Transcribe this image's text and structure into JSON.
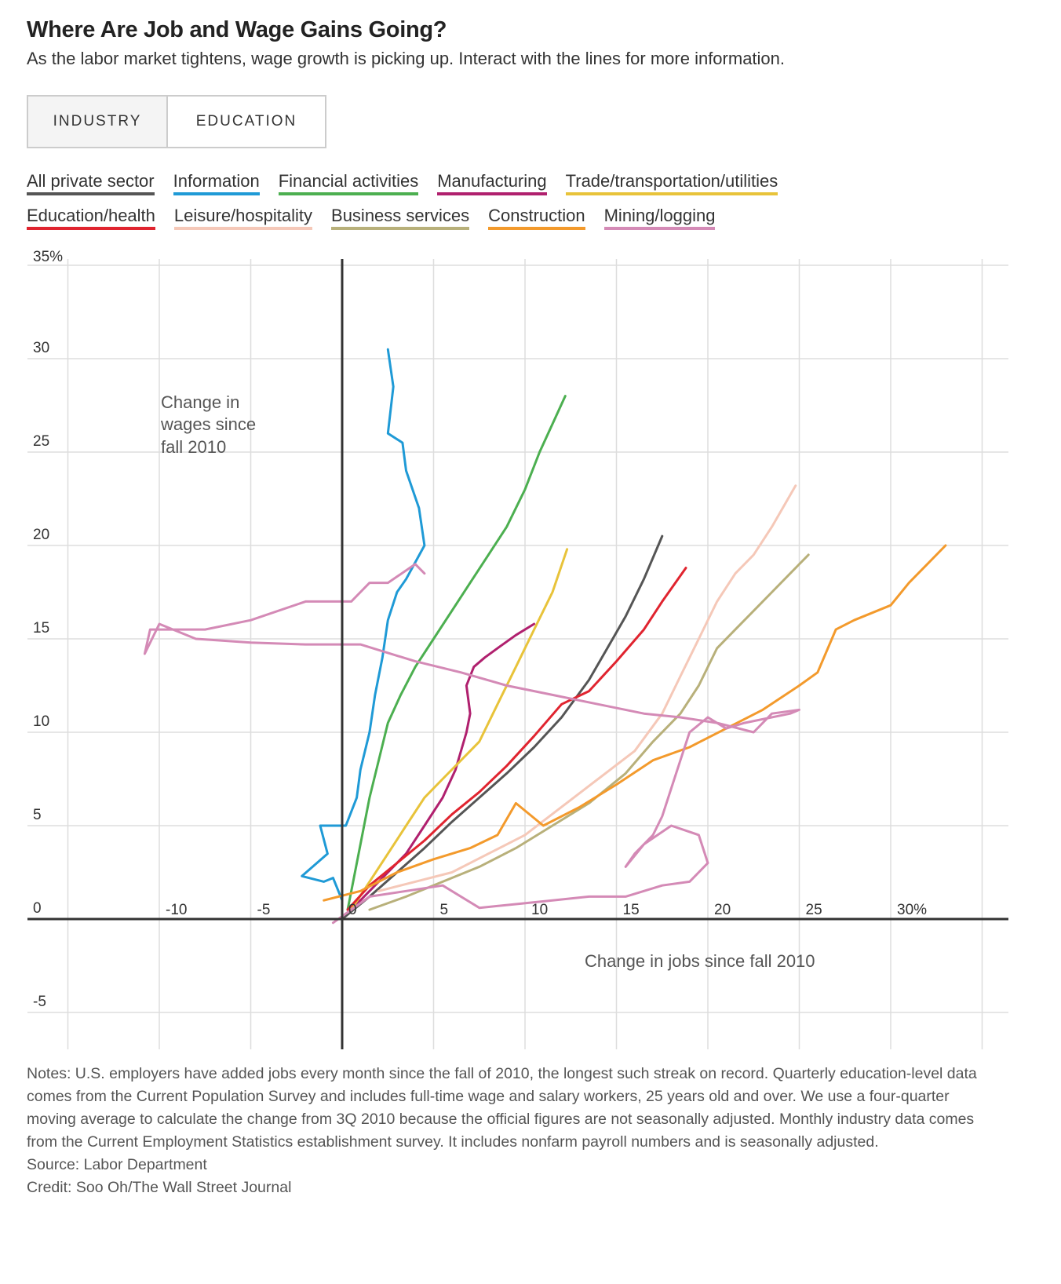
{
  "header": {
    "title": "Where Are Job and Wage Gains Going?",
    "subtitle": "As the labor market tightens, wage growth is picking up. Interact with the lines for more information."
  },
  "toggle": {
    "industry_label": "INDUSTRY",
    "education_label": "EDUCATION"
  },
  "legend": {
    "row1": [
      {
        "label": "All private sector",
        "color": "#555555"
      },
      {
        "label": "Information",
        "color": "#1f9ad6"
      },
      {
        "label": "Financial activities",
        "color": "#4caf50"
      },
      {
        "label": "Manufacturing",
        "color": "#b0206e"
      },
      {
        "label": "Trade/transportation/utilities",
        "color": "#e8c33a"
      }
    ],
    "row2": [
      {
        "label": "Education/health",
        "color": "#e0242f"
      },
      {
        "label": "Leisure/hospitality",
        "color": "#f5c8b8"
      },
      {
        "label": "Business services",
        "color": "#b8b07a"
      },
      {
        "label": "Construction",
        "color": "#f39a2c"
      },
      {
        "label": "Mining/logging",
        "color": "#d48ab6"
      }
    ]
  },
  "chart_data": {
    "type": "line",
    "title": "Where Are Job and Wage Gains Going?",
    "xlabel": "Change in jobs since fall 2010",
    "ylabel": "Change in wages since fall 2010",
    "xlim": [
      -15,
      36
    ],
    "ylim": [
      -7,
      36.5
    ],
    "x_ticks": [
      -10,
      -5,
      0,
      5,
      10,
      15,
      20,
      25,
      30
    ],
    "x_tick_labels": [
      "-10",
      "-5",
      "0",
      "5",
      "10",
      "15",
      "20",
      "25",
      "30%"
    ],
    "y_ticks": [
      -5,
      0,
      5,
      10,
      15,
      20,
      25,
      30,
      35
    ],
    "y_tick_labels": [
      "-5",
      "0",
      "5",
      "10",
      "15",
      "20",
      "25",
      "30",
      "35%"
    ],
    "grid": true,
    "series": [
      {
        "name": "All private sector",
        "color": "#555555",
        "x": [
          0,
          1.5,
          3,
          4.5,
          6,
          7.5,
          9,
          10.5,
          12,
          13.5,
          14.5,
          15.5,
          16.5,
          17.5
        ],
        "y": [
          0,
          1.2,
          2.5,
          3.8,
          5.2,
          6.5,
          7.8,
          9.2,
          10.8,
          12.8,
          14.5,
          16.2,
          18.2,
          20.5
        ]
      },
      {
        "name": "Information",
        "color": "#1f9ad6",
        "x": [
          0,
          -0.5,
          -1,
          -2.2,
          -0.8,
          -1.2,
          0.2,
          0.8,
          1,
          1.5,
          1.8,
          2.2,
          2.5,
          3,
          3.5,
          4.5,
          4.2,
          3.5,
          3.3,
          2.5,
          2.8,
          2.5
        ],
        "y": [
          1,
          2.2,
          2,
          2.3,
          3.5,
          5,
          5,
          6.5,
          8,
          10,
          12,
          14,
          16,
          17.5,
          18.2,
          20,
          22,
          24,
          25.5,
          26,
          28.5,
          30.5
        ]
      },
      {
        "name": "Financial activities",
        "color": "#4caf50",
        "x": [
          0.3,
          0.6,
          1,
          1.5,
          2,
          2.5,
          3.2,
          4,
          5,
          6,
          7,
          8,
          9,
          10,
          10.8,
          11.5,
          12.2
        ],
        "y": [
          0.5,
          2,
          4,
          6.5,
          8.5,
          10.5,
          12,
          13.5,
          15,
          16.5,
          18,
          19.5,
          21,
          23,
          25,
          26.5,
          28
        ]
      },
      {
        "name": "Manufacturing",
        "color": "#b0206e",
        "x": [
          0.5,
          1.5,
          2.5,
          3.5,
          4.5,
          5.5,
          6.2,
          6.8,
          7,
          6.8,
          7.2,
          7.8,
          8.5,
          9.5,
          10.5
        ],
        "y": [
          0.5,
          1.5,
          2.5,
          3.5,
          5,
          6.5,
          8,
          10,
          11,
          12.5,
          13.5,
          14,
          14.5,
          15.2,
          15.8
        ]
      },
      {
        "name": "Trade/transportation/utilities",
        "color": "#e8c33a",
        "x": [
          0.5,
          1.5,
          2.5,
          3.5,
          4.5,
          5.5,
          6.5,
          7.5,
          8.5,
          9.5,
          10.5,
          11.5,
          12.3
        ],
        "y": [
          0.5,
          2,
          3.5,
          5,
          6.5,
          7.5,
          8.5,
          9.5,
          11.5,
          13.5,
          15.5,
          17.5,
          19.8
        ]
      },
      {
        "name": "Education/health",
        "color": "#e0242f",
        "x": [
          0.3,
          1.5,
          3,
          4.5,
          6,
          7.5,
          9,
          10.5,
          12,
          13.5,
          15,
          16.5,
          17.5,
          18.8
        ],
        "y": [
          0.5,
          1.8,
          3,
          4.2,
          5.6,
          6.8,
          8.2,
          9.8,
          11.5,
          12.2,
          13.8,
          15.5,
          17,
          18.8
        ]
      },
      {
        "name": "Leisure/hospitality",
        "color": "#f5c8b8",
        "x": [
          2,
          4,
          6,
          8,
          10,
          12,
          14,
          16,
          17.5,
          18.5,
          19.5,
          20.5,
          21.5,
          22.5,
          23.5,
          24.8
        ],
        "y": [
          1.5,
          2,
          2.5,
          3.5,
          4.5,
          6,
          7.5,
          9,
          11,
          13,
          15,
          17,
          18.5,
          19.5,
          21,
          23.2
        ]
      },
      {
        "name": "Business services",
        "color": "#b8b07a",
        "x": [
          1.5,
          3.5,
          5.5,
          7.5,
          9.5,
          11.5,
          13.5,
          15.5,
          17,
          18.5,
          19.5,
          20.5,
          21.5,
          22.5,
          23.5,
          24.5,
          25.5
        ],
        "y": [
          0.5,
          1.2,
          2,
          2.8,
          3.8,
          5,
          6.2,
          7.8,
          9.5,
          11,
          12.5,
          14.5,
          15.5,
          16.5,
          17.5,
          18.5,
          19.5
        ]
      },
      {
        "name": "Construction",
        "color": "#f39a2c",
        "x": [
          -1,
          1,
          3,
          5,
          7,
          8.5,
          9.5,
          11,
          13,
          15,
          17,
          19,
          21,
          23,
          25,
          26,
          27,
          28,
          30,
          31,
          32,
          33
        ],
        "y": [
          1,
          1.5,
          2.5,
          3.2,
          3.8,
          4.5,
          6.2,
          5,
          6,
          7.2,
          8.5,
          9.2,
          10.2,
          11.2,
          12.5,
          13.2,
          15.5,
          16,
          16.8,
          18,
          19,
          20
        ]
      },
      {
        "name": "Mining/logging",
        "color": "#d48ab6",
        "x": [
          4.5,
          4,
          2.5,
          1.5,
          0.5,
          -2,
          -5,
          -7.5,
          -10.5,
          -10.8,
          -10,
          -8,
          -5,
          -2,
          1,
          4,
          6.5,
          9,
          11.5,
          14,
          16.5,
          18.5,
          20.5,
          22.5,
          23.5,
          25,
          24.5,
          22,
          21,
          20,
          19,
          18.5,
          18,
          17.5,
          17,
          16,
          15.5,
          16.5,
          18,
          19.5,
          20,
          19,
          17.5,
          15.5,
          13.5,
          11.5,
          9.5,
          7.5,
          5.5,
          3.5,
          1.5,
          0.5,
          -0.5
        ],
        "y": [
          18.5,
          19,
          18,
          18,
          17,
          17,
          16,
          15.5,
          15.5,
          14.2,
          15.8,
          15,
          14.8,
          14.7,
          14.7,
          13.8,
          13.2,
          12.5,
          12,
          11.5,
          11,
          10.8,
          10.5,
          10,
          11,
          11.2,
          11,
          10.5,
          10.2,
          10.8,
          10,
          8.5,
          7,
          5.5,
          4.5,
          3.5,
          2.8,
          4,
          5,
          4.5,
          3,
          2,
          1.8,
          1.2,
          1.2,
          1,
          0.8,
          0.6,
          1.8,
          1.5,
          1.2,
          0.5,
          -0.2
        ]
      }
    ]
  },
  "notes": {
    "text": "Notes: U.S. employers have added jobs every month since the fall of 2010, the longest such streak on record. Quarterly education-level data comes from the Current Population Survey and includes full-time wage and salary workers, 25 years old and over. We use a four-quarter moving average to calculate the change from 3Q 2010 because the official figures are not seasonally adjusted. Monthly industry data comes from the Current Employment Statistics establishment survey. It includes nonfarm payroll numbers and is seasonally adjusted.",
    "source": "Source: Labor Department",
    "credit": "Credit: Soo Oh/The Wall Street Journal"
  }
}
